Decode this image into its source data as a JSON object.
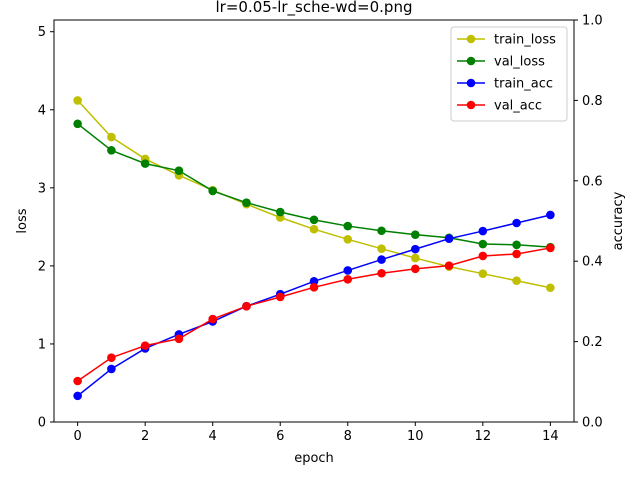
{
  "chart_data": {
    "type": "line",
    "title": "lr=0.05-lr_sche-wd=0.png",
    "xlabel": "epoch",
    "ylabel_left": "loss",
    "ylabel_right": "accuracy",
    "x": [
      0,
      1,
      2,
      3,
      4,
      5,
      6,
      7,
      8,
      9,
      10,
      11,
      12,
      13,
      14
    ],
    "xlim": [
      -0.7,
      14.7
    ],
    "xticks": [
      0,
      2,
      4,
      6,
      8,
      10,
      12,
      14
    ],
    "ylim_left": [
      0,
      5.15
    ],
    "yticks_left": [
      0,
      1,
      2,
      3,
      4,
      5
    ],
    "ylim_right": [
      0,
      1.0
    ],
    "yticks_right": [
      0.0,
      0.2,
      0.4,
      0.6,
      0.8,
      1.0
    ],
    "legend_position": "top-right",
    "grid": false,
    "series": [
      {
        "name": "train_loss",
        "axis": "left",
        "color": "#bfbf00",
        "values": [
          4.12,
          3.65,
          3.37,
          3.16,
          2.97,
          2.79,
          2.62,
          2.47,
          2.34,
          2.22,
          2.1,
          1.99,
          1.9,
          1.81,
          1.72
        ]
      },
      {
        "name": "val_loss",
        "axis": "left",
        "color": "#008000",
        "values": [
          3.82,
          3.48,
          3.31,
          3.22,
          2.96,
          2.81,
          2.69,
          2.59,
          2.51,
          2.45,
          2.4,
          2.36,
          2.28,
          2.27,
          2.24
        ]
      },
      {
        "name": "train_acc",
        "axis": "right",
        "color": "#0000ff",
        "values": [
          0.065,
          0.132,
          0.183,
          0.218,
          0.25,
          0.288,
          0.318,
          0.35,
          0.377,
          0.404,
          0.43,
          0.456,
          0.475,
          0.495,
          0.515
        ]
      },
      {
        "name": "val_acc",
        "axis": "right",
        "color": "#ff0000",
        "values": [
          0.102,
          0.16,
          0.19,
          0.207,
          0.256,
          0.288,
          0.311,
          0.335,
          0.355,
          0.37,
          0.381,
          0.389,
          0.413,
          0.418,
          0.433
        ]
      }
    ]
  }
}
